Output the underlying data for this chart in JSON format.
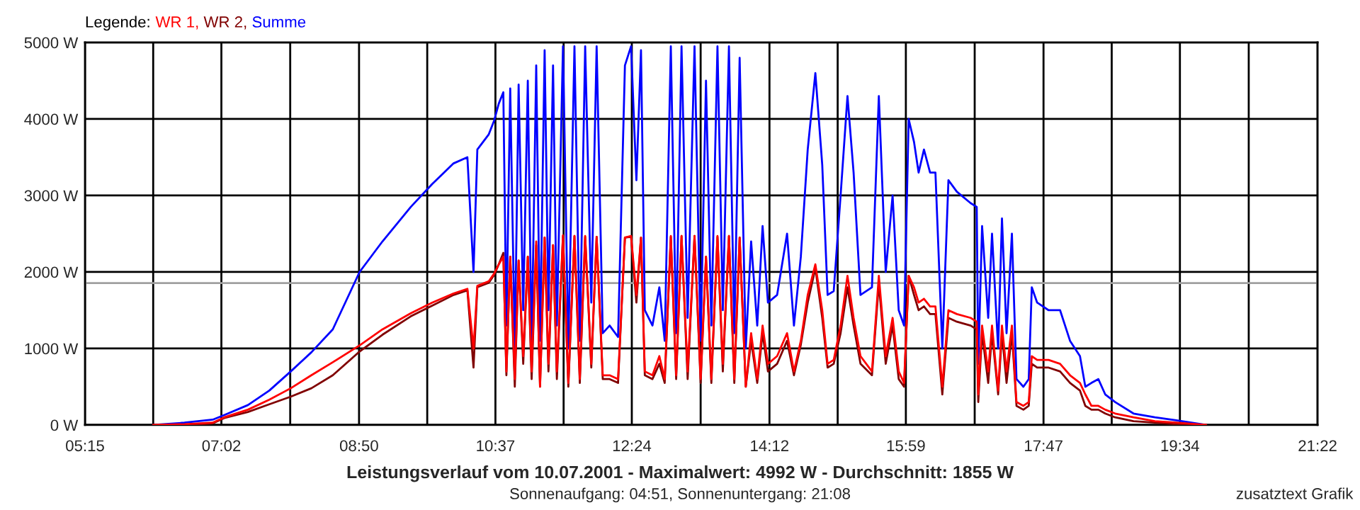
{
  "chart_data": {
    "type": "line",
    "title": "Leistungsverlauf vom 10.07.2001 - Maximalwert: 4992 W - Durchschnitt: 1855 W",
    "subtitle": "Sonnenaufgang: 04:51, Sonnenuntergang: 21:08",
    "annotations": [
      "zusatztext Grafik"
    ],
    "legend_title": "Legende:",
    "legend": "top left",
    "grid": true,
    "xlim": [
      5.25,
      21.3667
    ],
    "ylim": [
      0,
      5000
    ],
    "xticks": [
      {
        "value": 5.25,
        "label": "05:15"
      },
      {
        "value": 6.1417,
        "label": null
      },
      {
        "value": 7.0333,
        "label": "07:02"
      },
      {
        "value": 7.9333,
        "label": null
      },
      {
        "value": 8.8333,
        "label": "08:50"
      },
      {
        "value": 9.725,
        "label": null
      },
      {
        "value": 10.6167,
        "label": "10:37"
      },
      {
        "value": 11.5083,
        "label": null
      },
      {
        "value": 12.4,
        "label": "12:24"
      },
      {
        "value": 13.3,
        "label": null
      },
      {
        "value": 14.2,
        "label": "14:12"
      },
      {
        "value": 15.0917,
        "label": null
      },
      {
        "value": 15.9833,
        "label": "15:59"
      },
      {
        "value": 16.8833,
        "label": null
      },
      {
        "value": 17.7833,
        "label": "17:47"
      },
      {
        "value": 18.675,
        "label": null
      },
      {
        "value": 19.5667,
        "label": "19:34"
      },
      {
        "value": 20.4667,
        "label": null
      },
      {
        "value": 21.3667,
        "label": "21:22"
      }
    ],
    "yticks": [
      {
        "value": 0,
        "label": "0 W"
      },
      {
        "value": 1000,
        "label": "1000 W"
      },
      {
        "value": 2000,
        "label": "2000 W"
      },
      {
        "value": 3000,
        "label": "3000 W"
      },
      {
        "value": 4000,
        "label": "4000 W"
      },
      {
        "value": 5000,
        "label": "5000 W"
      }
    ],
    "ref_lines": [
      {
        "axis": "y",
        "value": 1855,
        "color": "#a0a0a0"
      }
    ],
    "x": [
      6.14,
      6.55,
      6.92,
      7.07,
      7.38,
      7.66,
      7.94,
      8.21,
      8.49,
      8.84,
      9.14,
      9.51,
      9.79,
      10.07,
      10.25,
      10.33,
      10.38,
      10.53,
      10.6,
      10.66,
      10.72,
      10.76,
      10.81,
      10.87,
      10.92,
      10.98,
      11.04,
      11.09,
      11.15,
      11.2,
      11.26,
      11.31,
      11.37,
      11.42,
      11.5,
      11.57,
      11.65,
      11.72,
      11.79,
      11.87,
      11.94,
      12.02,
      12.11,
      12.22,
      12.31,
      12.39,
      12.46,
      12.52,
      12.57,
      12.67,
      12.76,
      12.83,
      12.91,
      12.98,
      13.05,
      13.13,
      13.22,
      13.3,
      13.37,
      13.44,
      13.52,
      13.59,
      13.67,
      13.74,
      13.81,
      13.89,
      13.96,
      14.04,
      14.11,
      14.18,
      14.3,
      14.43,
      14.52,
      14.61,
      14.7,
      14.8,
      14.89,
      14.96,
      15.04,
      15.13,
      15.22,
      15.3,
      15.39,
      15.54,
      15.63,
      15.72,
      15.81,
      15.89,
      15.96,
      16.02,
      16.09,
      16.15,
      16.22,
      16.3,
      16.37,
      16.46,
      16.54,
      16.65,
      16.83,
      16.91,
      16.93,
      16.98,
      17.06,
      17.11,
      17.19,
      17.24,
      17.3,
      17.37,
      17.43,
      17.52,
      17.59,
      17.63,
      17.7,
      17.85,
      18.0,
      18.13,
      18.26,
      18.33,
      18.41,
      18.5,
      18.59,
      18.72,
      18.96,
      19.24,
      19.52,
      19.91
    ],
    "series": [
      {
        "name": "WR 1,",
        "color": "#ff0000",
        "values": [
          0,
          10,
          30,
          100,
          200,
          330,
          480,
          650,
          820,
          1040,
          1250,
          1460,
          1600,
          1720,
          1780,
          1000,
          1820,
          1880,
          1980,
          2100,
          2200,
          700,
          2200,
          600,
          2150,
          900,
          2200,
          700,
          2400,
          500,
          2450,
          800,
          2350,
          700,
          2480,
          550,
          2470,
          600,
          2470,
          800,
          2460,
          650,
          650,
          600,
          2450,
          2470,
          1700,
          2450,
          700,
          650,
          900,
          600,
          2470,
          650,
          2470,
          700,
          2470,
          600,
          2200,
          600,
          2470,
          800,
          2470,
          600,
          2450,
          500,
          1200,
          600,
          1300,
          800,
          900,
          1200,
          700,
          1100,
          1700,
          2100,
          1500,
          800,
          850,
          1300,
          1950,
          1400,
          900,
          700,
          1950,
          900,
          1400,
          700,
          550,
          1950,
          1800,
          1600,
          1650,
          1550,
          1550,
          500,
          1500,
          1450,
          1400,
          1350,
          400,
          1300,
          700,
          1300,
          450,
          1300,
          700,
          1300,
          300,
          250,
          300,
          900,
          850,
          850,
          800,
          650,
          550,
          400,
          250,
          250,
          200,
          150,
          100,
          50,
          30,
          0
        ]
      },
      {
        "name": "WR 2,",
        "color": "#800000",
        "values": [
          0,
          0,
          20,
          90,
          170,
          270,
          370,
          480,
          650,
          960,
          1180,
          1420,
          1560,
          1700,
          1760,
          750,
          1800,
          1860,
          1960,
          2100,
          2250,
          650,
          2200,
          500,
          2150,
          800,
          2200,
          600,
          2350,
          500,
          2450,
          700,
          2350,
          600,
          2470,
          500,
          2470,
          550,
          2460,
          750,
          2460,
          600,
          600,
          550,
          2450,
          2460,
          1600,
          2450,
          650,
          600,
          800,
          550,
          2460,
          600,
          2470,
          600,
          2470,
          550,
          2200,
          550,
          2460,
          700,
          2470,
          550,
          2450,
          500,
          1100,
          550,
          1200,
          700,
          800,
          1100,
          650,
          1050,
          1600,
          2050,
          1400,
          750,
          800,
          1200,
          1800,
          1300,
          800,
          650,
          1850,
          800,
          1300,
          600,
          500,
          1950,
          1700,
          1500,
          1550,
          1450,
          1450,
          400,
          1400,
          1350,
          1300,
          1250,
          300,
          1200,
          550,
          1200,
          400,
          1200,
          550,
          1200,
          250,
          200,
          250,
          800,
          750,
          750,
          700,
          550,
          450,
          250,
          200,
          200,
          150,
          100,
          50,
          30,
          10,
          0
        ]
      },
      {
        "name": "Summe",
        "color": "#0000ff",
        "values": [
          0,
          30,
          70,
          130,
          260,
          450,
          700,
          950,
          1250,
          2000,
          2400,
          2850,
          3150,
          3420,
          3500,
          2000,
          3600,
          3800,
          3980,
          4200,
          4350,
          1300,
          4400,
          1000,
          4450,
          1500,
          4500,
          1000,
          4700,
          1100,
          4900,
          1500,
          4700,
          1300,
          4950,
          1000,
          4950,
          1100,
          4950,
          1600,
          4950,
          1200,
          1300,
          1150,
          4700,
          4950,
          3200,
          4900,
          1500,
          1300,
          1800,
          1100,
          4950,
          1200,
          4950,
          1400,
          4950,
          1100,
          4500,
          1300,
          4950,
          1500,
          4950,
          1200,
          4800,
          1000,
          2400,
          1300,
          2600,
          1600,
          1700,
          2500,
          1300,
          2200,
          3600,
          4600,
          3400,
          1700,
          1750,
          3000,
          4300,
          3300,
          1700,
          1800,
          4300,
          2000,
          3000,
          1500,
          1300,
          4000,
          3700,
          3300,
          3600,
          3300,
          3300,
          1000,
          3200,
          3050,
          2900,
          2850,
          800,
          2600,
          1400,
          2500,
          1000,
          2700,
          1200,
          2500,
          600,
          500,
          600,
          1800,
          1600,
          1500,
          1500,
          1100,
          900,
          500,
          550,
          600,
          400,
          300,
          150,
          100,
          60,
          0
        ]
      }
    ]
  }
}
